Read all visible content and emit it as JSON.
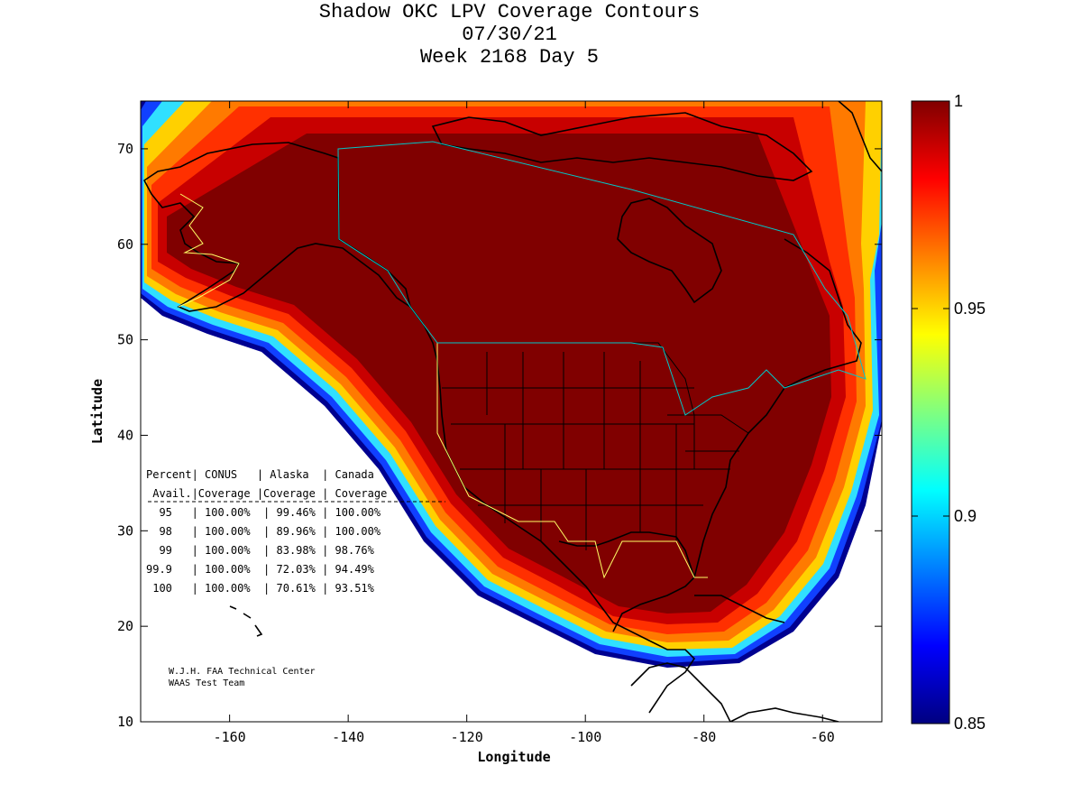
{
  "title": {
    "line1": "Shadow OKC LPV Coverage Contours",
    "line2": "07/30/21",
    "line3": "Week 2168 Day 5"
  },
  "axes": {
    "xlabel": "Longitude",
    "ylabel": "Latitude",
    "xlim": [
      -175,
      -50
    ],
    "ylim": [
      10,
      75
    ],
    "xticks": [
      -160,
      -140,
      -120,
      -100,
      -80,
      -60
    ],
    "yticks": [
      10,
      20,
      30,
      40,
      50,
      60,
      70
    ]
  },
  "colorbar": {
    "min": 0.85,
    "max": 1,
    "ticks": [
      "1",
      "0.95",
      "0.9",
      "0.85"
    ],
    "colormap": "jet"
  },
  "coverage_table": {
    "header1": "Percent| CONUS   | Alaska  | Canada",
    "header2": " Avail.|Coverage |Coverage | Coverage",
    "rows": [
      "  95   | 100.00%  | 99.46% | 100.00%",
      "  98   | 100.00%  | 89.96% | 100.00%",
      "  99   | 100.00%  | 83.98% | 98.76%",
      "99.9   | 100.00%  | 72.03% | 94.49%",
      " 100   | 100.00%  | 70.61% | 93.51%"
    ]
  },
  "credits": {
    "line1": "W.J.H. FAA Technical Center",
    "line2": "WAAS Test Team"
  },
  "colors": {
    "dark_red": "#800000",
    "red": "#c80000",
    "orange_red": "#ff3000",
    "orange": "#ff7a00",
    "yellow": "#ffd000",
    "cyan": "#30e0ff",
    "blue": "#1040ff",
    "dark_blue": "#000090",
    "state_lines": "#000000",
    "alaska_canada_border": "#ffff66",
    "canada_border": "#00c8c8"
  }
}
